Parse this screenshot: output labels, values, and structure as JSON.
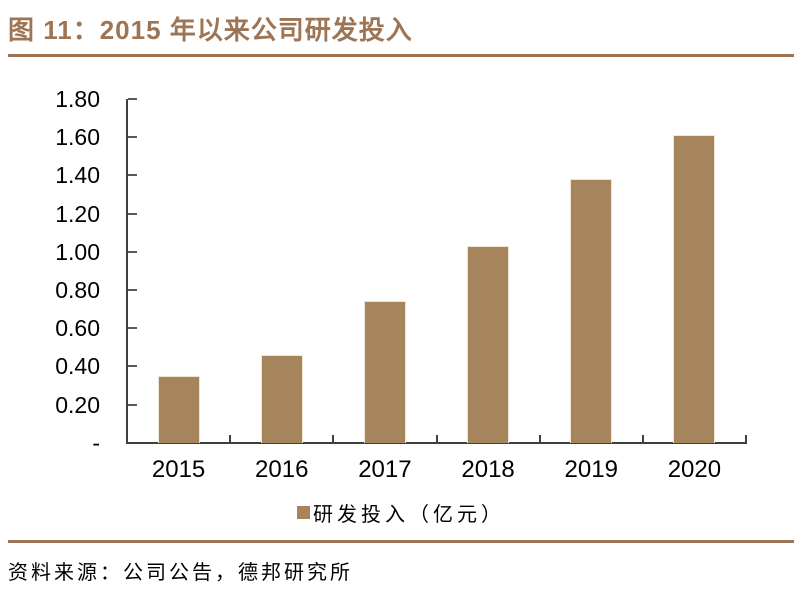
{
  "header": {
    "title": "图 11：2015 年以来公司研发投入"
  },
  "chart_data": {
    "type": "bar",
    "title": "图 11：2015 年以来公司研发投入",
    "categories": [
      "2015",
      "2016",
      "2017",
      "2018",
      "2019",
      "2020"
    ],
    "series": [
      {
        "name": "研发投入（亿元）",
        "values": [
          0.35,
          0.46,
          0.74,
          1.03,
          1.38,
          1.61
        ]
      }
    ],
    "xlabel": "",
    "ylabel": "",
    "ylim": [
      0,
      1.8
    ],
    "y_tick_step": 0.2,
    "y_tick_labels": [
      "1.80",
      "1.60",
      "1.40",
      "1.20",
      "1.00",
      "0.80",
      "0.60",
      "0.40",
      "0.20",
      "-"
    ],
    "grid": false,
    "legend_position": "bottom",
    "bar_color": "#A7855C"
  },
  "legend": {
    "swatch_icon": "legend-square-icon",
    "label": "研发投入（亿元）"
  },
  "footer": {
    "source": "资料来源：公司公告，德邦研究所"
  },
  "colors": {
    "accent_brown": "#9C7355",
    "title_brown": "#9E7554",
    "bar": "#A7855C",
    "axis": "#3F3F3F",
    "text": "#000000"
  }
}
